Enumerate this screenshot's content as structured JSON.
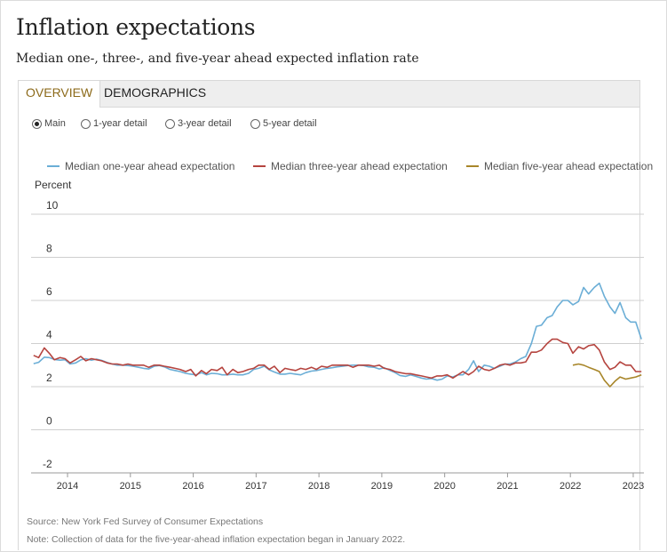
{
  "header": {
    "title": "Inflation expectations",
    "subtitle": "Median one-, three-, and five-year ahead expected inflation rate"
  },
  "tabs": [
    {
      "label": "OVERVIEW",
      "active": true
    },
    {
      "label": "DEMOGRAPHICS",
      "active": false
    }
  ],
  "radios": [
    {
      "label": "Main",
      "checked": true
    },
    {
      "label": "1-year detail",
      "checked": false
    },
    {
      "label": "3-year detail",
      "checked": false
    },
    {
      "label": "5-year detail",
      "checked": false
    }
  ],
  "chart_data": {
    "type": "line",
    "ylabel": "Percent",
    "ylim": [
      -2,
      10
    ],
    "yticks": [
      10,
      8,
      6,
      4,
      2,
      0,
      -2
    ],
    "xlim": [
      2013.42,
      2023.17
    ],
    "xticks": [
      "2014",
      "2015",
      "2016",
      "2017",
      "2018",
      "2019",
      "2020",
      "2021",
      "2022",
      "2023"
    ],
    "legend_position": "top",
    "series": [
      {
        "name": "Median one-year ahead expectation",
        "color": "#6baed6",
        "points": [
          [
            2013.46,
            3.07
          ],
          [
            2013.54,
            3.13
          ],
          [
            2013.63,
            3.37
          ],
          [
            2013.71,
            3.35
          ],
          [
            2013.79,
            3.26
          ],
          [
            2013.88,
            3.23
          ],
          [
            2013.96,
            3.25
          ],
          [
            2014.04,
            3.05
          ],
          [
            2014.13,
            3.1
          ],
          [
            2014.21,
            3.24
          ],
          [
            2014.29,
            3.3
          ],
          [
            2014.38,
            3.23
          ],
          [
            2014.46,
            3.28
          ],
          [
            2014.54,
            3.22
          ],
          [
            2014.63,
            3.12
          ],
          [
            2014.71,
            3.05
          ],
          [
            2014.79,
            3.0
          ],
          [
            2014.88,
            3.0
          ],
          [
            2014.96,
            2.98
          ],
          [
            2015.04,
            2.95
          ],
          [
            2015.13,
            2.9
          ],
          [
            2015.21,
            2.85
          ],
          [
            2015.29,
            2.82
          ],
          [
            2015.38,
            2.95
          ],
          [
            2015.46,
            2.98
          ],
          [
            2015.54,
            2.92
          ],
          [
            2015.63,
            2.8
          ],
          [
            2015.71,
            2.75
          ],
          [
            2015.79,
            2.7
          ],
          [
            2015.88,
            2.62
          ],
          [
            2015.96,
            2.58
          ],
          [
            2016.04,
            2.55
          ],
          [
            2016.13,
            2.65
          ],
          [
            2016.21,
            2.55
          ],
          [
            2016.29,
            2.62
          ],
          [
            2016.38,
            2.6
          ],
          [
            2016.46,
            2.55
          ],
          [
            2016.54,
            2.55
          ],
          [
            2016.63,
            2.58
          ],
          [
            2016.71,
            2.55
          ],
          [
            2016.79,
            2.55
          ],
          [
            2016.88,
            2.62
          ],
          [
            2016.96,
            2.8
          ],
          [
            2017.04,
            2.85
          ],
          [
            2017.13,
            2.95
          ],
          [
            2017.21,
            2.78
          ],
          [
            2017.29,
            2.68
          ],
          [
            2017.38,
            2.58
          ],
          [
            2017.46,
            2.58
          ],
          [
            2017.54,
            2.62
          ],
          [
            2017.63,
            2.58
          ],
          [
            2017.71,
            2.55
          ],
          [
            2017.79,
            2.65
          ],
          [
            2017.88,
            2.72
          ],
          [
            2017.96,
            2.75
          ],
          [
            2018.04,
            2.8
          ],
          [
            2018.13,
            2.85
          ],
          [
            2018.21,
            2.88
          ],
          [
            2018.29,
            2.92
          ],
          [
            2018.38,
            2.95
          ],
          [
            2018.46,
            2.98
          ],
          [
            2018.54,
            3.0
          ],
          [
            2018.63,
            3.0
          ],
          [
            2018.71,
            2.98
          ],
          [
            2018.79,
            2.92
          ],
          [
            2018.88,
            2.9
          ],
          [
            2018.96,
            2.82
          ],
          [
            2019.04,
            2.88
          ],
          [
            2019.13,
            2.75
          ],
          [
            2019.21,
            2.65
          ],
          [
            2019.29,
            2.52
          ],
          [
            2019.38,
            2.48
          ],
          [
            2019.46,
            2.55
          ],
          [
            2019.54,
            2.48
          ],
          [
            2019.63,
            2.4
          ],
          [
            2019.71,
            2.35
          ],
          [
            2019.79,
            2.38
          ],
          [
            2019.88,
            2.3
          ],
          [
            2019.96,
            2.35
          ],
          [
            2020.04,
            2.5
          ],
          [
            2020.13,
            2.45
          ],
          [
            2020.21,
            2.55
          ],
          [
            2020.29,
            2.55
          ],
          [
            2020.38,
            2.8
          ],
          [
            2020.46,
            3.2
          ],
          [
            2020.54,
            2.7
          ],
          [
            2020.63,
            3.0
          ],
          [
            2020.71,
            2.95
          ],
          [
            2020.79,
            2.85
          ],
          [
            2020.88,
            2.95
          ],
          [
            2020.96,
            3.05
          ],
          [
            2021.04,
            3.05
          ],
          [
            2021.13,
            3.15
          ],
          [
            2021.21,
            3.3
          ],
          [
            2021.29,
            3.4
          ],
          [
            2021.38,
            4.0
          ],
          [
            2021.46,
            4.8
          ],
          [
            2021.54,
            4.85
          ],
          [
            2021.63,
            5.2
          ],
          [
            2021.71,
            5.3
          ],
          [
            2021.79,
            5.7
          ],
          [
            2021.88,
            6.0
          ],
          [
            2021.96,
            6.0
          ],
          [
            2022.04,
            5.8
          ],
          [
            2022.13,
            5.95
          ],
          [
            2022.21,
            6.6
          ],
          [
            2022.29,
            6.3
          ],
          [
            2022.38,
            6.6
          ],
          [
            2022.46,
            6.8
          ],
          [
            2022.54,
            6.2
          ],
          [
            2022.63,
            5.7
          ],
          [
            2022.71,
            5.4
          ],
          [
            2022.79,
            5.9
          ],
          [
            2022.88,
            5.2
          ],
          [
            2022.96,
            5.0
          ],
          [
            2023.04,
            5.0
          ],
          [
            2023.13,
            4.2
          ]
        ]
      },
      {
        "name": "Median three-year ahead expectation",
        "color": "#b5443f",
        "points": [
          [
            2013.46,
            3.45
          ],
          [
            2013.54,
            3.35
          ],
          [
            2013.63,
            3.8
          ],
          [
            2013.71,
            3.55
          ],
          [
            2013.79,
            3.25
          ],
          [
            2013.88,
            3.35
          ],
          [
            2013.96,
            3.3
          ],
          [
            2014.04,
            3.1
          ],
          [
            2014.13,
            3.25
          ],
          [
            2014.21,
            3.4
          ],
          [
            2014.29,
            3.2
          ],
          [
            2014.38,
            3.3
          ],
          [
            2014.46,
            3.25
          ],
          [
            2014.54,
            3.2
          ],
          [
            2014.63,
            3.1
          ],
          [
            2014.71,
            3.05
          ],
          [
            2014.79,
            3.05
          ],
          [
            2014.88,
            3.0
          ],
          [
            2014.96,
            3.05
          ],
          [
            2015.04,
            3.0
          ],
          [
            2015.13,
            3.0
          ],
          [
            2015.21,
            3.0
          ],
          [
            2015.29,
            2.9
          ],
          [
            2015.38,
            3.0
          ],
          [
            2015.46,
            3.0
          ],
          [
            2015.54,
            2.95
          ],
          [
            2015.63,
            2.9
          ],
          [
            2015.71,
            2.85
          ],
          [
            2015.79,
            2.8
          ],
          [
            2015.88,
            2.7
          ],
          [
            2015.96,
            2.8
          ],
          [
            2016.04,
            2.5
          ],
          [
            2016.13,
            2.75
          ],
          [
            2016.21,
            2.6
          ],
          [
            2016.29,
            2.8
          ],
          [
            2016.38,
            2.75
          ],
          [
            2016.46,
            2.9
          ],
          [
            2016.54,
            2.55
          ],
          [
            2016.63,
            2.8
          ],
          [
            2016.71,
            2.65
          ],
          [
            2016.79,
            2.7
          ],
          [
            2016.88,
            2.8
          ],
          [
            2016.96,
            2.85
          ],
          [
            2017.04,
            3.0
          ],
          [
            2017.13,
            3.0
          ],
          [
            2017.21,
            2.8
          ],
          [
            2017.29,
            2.95
          ],
          [
            2017.38,
            2.65
          ],
          [
            2017.46,
            2.85
          ],
          [
            2017.54,
            2.8
          ],
          [
            2017.63,
            2.75
          ],
          [
            2017.71,
            2.85
          ],
          [
            2017.79,
            2.8
          ],
          [
            2017.88,
            2.9
          ],
          [
            2017.96,
            2.8
          ],
          [
            2018.04,
            2.95
          ],
          [
            2018.13,
            2.9
          ],
          [
            2018.21,
            3.0
          ],
          [
            2018.29,
            3.0
          ],
          [
            2018.38,
            3.0
          ],
          [
            2018.46,
            3.0
          ],
          [
            2018.54,
            2.9
          ],
          [
            2018.63,
            3.0
          ],
          [
            2018.71,
            3.0
          ],
          [
            2018.79,
            3.0
          ],
          [
            2018.88,
            2.95
          ],
          [
            2018.96,
            3.0
          ],
          [
            2019.04,
            2.85
          ],
          [
            2019.13,
            2.8
          ],
          [
            2019.21,
            2.7
          ],
          [
            2019.29,
            2.65
          ],
          [
            2019.38,
            2.6
          ],
          [
            2019.46,
            2.6
          ],
          [
            2019.54,
            2.55
          ],
          [
            2019.63,
            2.5
          ],
          [
            2019.71,
            2.45
          ],
          [
            2019.79,
            2.4
          ],
          [
            2019.88,
            2.5
          ],
          [
            2019.96,
            2.5
          ],
          [
            2020.04,
            2.55
          ],
          [
            2020.13,
            2.4
          ],
          [
            2020.21,
            2.55
          ],
          [
            2020.29,
            2.7
          ],
          [
            2020.38,
            2.55
          ],
          [
            2020.46,
            2.7
          ],
          [
            2020.54,
            2.95
          ],
          [
            2020.63,
            2.8
          ],
          [
            2020.71,
            2.75
          ],
          [
            2020.79,
            2.85
          ],
          [
            2020.88,
            3.0
          ],
          [
            2020.96,
            3.05
          ],
          [
            2021.04,
            3.0
          ],
          [
            2021.13,
            3.1
          ],
          [
            2021.21,
            3.1
          ],
          [
            2021.29,
            3.15
          ],
          [
            2021.38,
            3.6
          ],
          [
            2021.46,
            3.6
          ],
          [
            2021.54,
            3.7
          ],
          [
            2021.63,
            4.0
          ],
          [
            2021.71,
            4.2
          ],
          [
            2021.79,
            4.2
          ],
          [
            2021.88,
            4.05
          ],
          [
            2021.96,
            4.0
          ],
          [
            2022.04,
            3.55
          ],
          [
            2022.13,
            3.85
          ],
          [
            2022.21,
            3.75
          ],
          [
            2022.29,
            3.9
          ],
          [
            2022.38,
            3.95
          ],
          [
            2022.46,
            3.7
          ],
          [
            2022.54,
            3.15
          ],
          [
            2022.63,
            2.8
          ],
          [
            2022.71,
            2.9
          ],
          [
            2022.79,
            3.15
          ],
          [
            2022.88,
            3.0
          ],
          [
            2022.96,
            3.0
          ],
          [
            2023.04,
            2.7
          ],
          [
            2023.13,
            2.7
          ]
        ]
      },
      {
        "name": "Median five-year ahead expectation",
        "color": "#a8862a",
        "points": [
          [
            2022.04,
            3.0
          ],
          [
            2022.13,
            3.05
          ],
          [
            2022.21,
            3.0
          ],
          [
            2022.29,
            2.9
          ],
          [
            2022.38,
            2.8
          ],
          [
            2022.46,
            2.7
          ],
          [
            2022.54,
            2.3
          ],
          [
            2022.63,
            2.0
          ],
          [
            2022.71,
            2.25
          ],
          [
            2022.79,
            2.45
          ],
          [
            2022.88,
            2.35
          ],
          [
            2022.96,
            2.4
          ],
          [
            2023.04,
            2.45
          ],
          [
            2023.13,
            2.55
          ]
        ]
      }
    ]
  },
  "footer": {
    "source": "Source: New York Fed Survey of Consumer Expectations",
    "note": "Note: Collection of data for the five-year-ahead inflation expectation began in January 2022."
  }
}
